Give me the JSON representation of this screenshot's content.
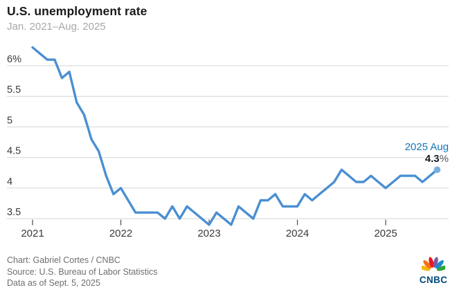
{
  "header": {
    "title": "U.S. unemployment rate",
    "subtitle": "Jan. 2021–Aug. 2025"
  },
  "chart_data": {
    "type": "line",
    "title": "U.S. unemployment rate",
    "subtitle": "Jan. 2021–Aug. 2025",
    "x_unit": "month",
    "x_start": "2021-01",
    "x_end": "2025-08",
    "x_tick_labels": [
      "2021",
      "2022",
      "2023",
      "2024",
      "2025"
    ],
    "x_tick_month_indices": [
      0,
      12,
      24,
      36,
      48
    ],
    "y_ticks": [
      {
        "label": "6%",
        "value": 6.0
      },
      {
        "label": "5.5",
        "value": 5.5
      },
      {
        "label": "5",
        "value": 5.0
      },
      {
        "label": "4.5",
        "value": 4.5
      },
      {
        "label": "4",
        "value": 4.0
      },
      {
        "label": "3.5",
        "value": 3.5
      }
    ],
    "ylim": [
      3.3,
      6.45
    ],
    "grid": "horizontal",
    "legend_position": "none",
    "series": [
      {
        "name": "U.S. unemployment rate (%)",
        "color": "#4a8fd2",
        "values": [
          6.3,
          6.2,
          6.1,
          6.1,
          5.8,
          5.9,
          5.4,
          5.2,
          4.8,
          4.6,
          4.2,
          3.9,
          4.0,
          3.8,
          3.6,
          3.6,
          3.6,
          3.6,
          3.5,
          3.7,
          3.5,
          3.7,
          3.6,
          3.5,
          3.4,
          3.6,
          3.5,
          3.4,
          3.7,
          3.6,
          3.5,
          3.8,
          3.8,
          3.9,
          3.7,
          3.7,
          3.7,
          3.9,
          3.8,
          3.9,
          4.0,
          4.1,
          4.3,
          4.2,
          4.1,
          4.1,
          4.2,
          4.1,
          4.0,
          4.1,
          4.2,
          4.2,
          4.2,
          4.1,
          4.2,
          4.3
        ]
      }
    ],
    "end_marker_color": "#7aaede",
    "annotation": {
      "when": "2025 Aug",
      "value": "4.3",
      "suffix": "%"
    },
    "colors": {
      "gridline": "#d6d6d6",
      "tick": "#4b4b4b",
      "axis_text": "#3a3a3a"
    }
  },
  "footer": {
    "lines": [
      "Chart: Gabriel Cortes / CNBC",
      "Source: U.S. Bureau of Labor Statistics",
      "Data as of Sept. 5, 2025"
    ]
  },
  "logo": {
    "text": "CNBC",
    "feather_colors": [
      "#f5b50a",
      "#f3701b",
      "#e8171f",
      "#7b5aa6",
      "#1d8ac9",
      "#31a63c"
    ]
  }
}
